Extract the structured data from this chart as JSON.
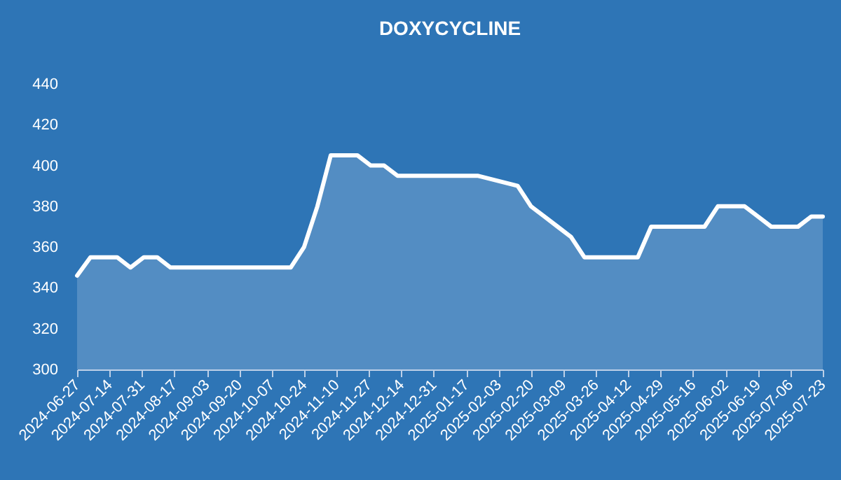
{
  "chart_data": {
    "type": "area",
    "title": "DOXYCYCLINE",
    "x": [
      "2024-06-27",
      "2024-07-04",
      "2024-07-11",
      "2024-07-18",
      "2024-07-25",
      "2024-08-01",
      "2024-08-08",
      "2024-08-15",
      "2024-08-22",
      "2024-08-29",
      "2024-09-05",
      "2024-09-12",
      "2024-09-19",
      "2024-09-26",
      "2024-10-03",
      "2024-10-10",
      "2024-10-17",
      "2024-10-24",
      "2024-10-31",
      "2024-11-07",
      "2024-11-14",
      "2024-11-21",
      "2024-11-28",
      "2024-12-05",
      "2024-12-12",
      "2024-12-19",
      "2024-12-26",
      "2025-01-09",
      "2025-01-16",
      "2025-01-23",
      "2025-02-13",
      "2025-02-20",
      "2025-02-27",
      "2025-03-06",
      "2025-03-13",
      "2025-03-20",
      "2025-03-27",
      "2025-04-03",
      "2025-04-10",
      "2025-04-17",
      "2025-04-24",
      "2025-05-01",
      "2025-05-08",
      "2025-05-15",
      "2025-05-22",
      "2025-05-29",
      "2025-06-05",
      "2025-06-12",
      "2025-06-19",
      "2025-06-26",
      "2025-07-03",
      "2025-07-10",
      "2025-07-17",
      "2025-07-23"
    ],
    "series": [
      {
        "color": "#ffffff",
        "values": [
          346,
          355,
          355,
          355,
          350,
          355,
          355,
          350,
          350,
          350,
          350,
          350,
          350,
          350,
          350,
          350,
          350,
          360,
          380,
          405,
          405,
          405,
          400,
          400,
          395,
          395,
          395,
          395,
          395,
          395,
          390,
          380,
          375,
          370,
          365,
          355,
          355,
          355,
          355,
          355,
          370,
          370,
          370,
          370,
          370,
          380,
          380,
          380,
          375,
          370,
          370,
          370,
          375,
          375
        ]
      }
    ],
    "xlim": [
      "2024-06-27",
      "2025-07-23"
    ],
    "xticks": [
      "2024-06-27",
      "2024-07-14",
      "2024-07-31",
      "2024-08-17",
      "2024-09-03",
      "2024-09-20",
      "2024-10-07",
      "2024-10-24",
      "2024-11-10",
      "2024-11-27",
      "2024-12-14",
      "2024-12-31",
      "2025-01-17",
      "2025-02-03",
      "2025-02-20",
      "2025-03-09",
      "2025-03-26",
      "2025-04-12",
      "2025-04-29",
      "2025-05-16",
      "2025-06-02",
      "2025-06-19",
      "2025-07-06",
      "2025-07-23"
    ],
    "ylim": [
      300,
      440
    ],
    "yticks": [
      300,
      320,
      340,
      360,
      380,
      400,
      420,
      440
    ]
  }
}
